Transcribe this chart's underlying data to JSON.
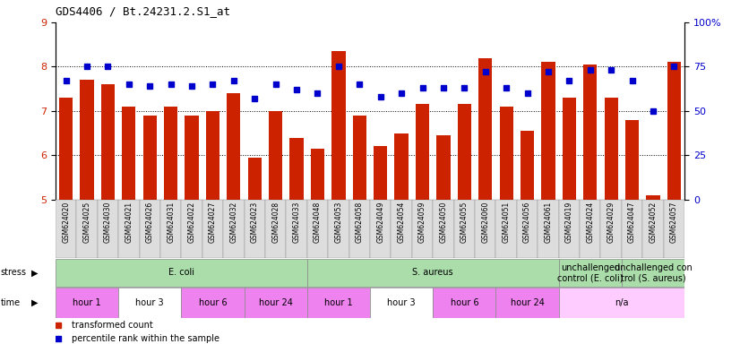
{
  "title": "GDS4406 / Bt.24231.2.S1_at",
  "categories": [
    "GSM624020",
    "GSM624025",
    "GSM624030",
    "GSM624021",
    "GSM624026",
    "GSM624031",
    "GSM624022",
    "GSM624027",
    "GSM624032",
    "GSM624023",
    "GSM624028",
    "GSM624033",
    "GSM624048",
    "GSM624053",
    "GSM624058",
    "GSM624049",
    "GSM624054",
    "GSM624059",
    "GSM624050",
    "GSM624055",
    "GSM624060",
    "GSM624051",
    "GSM624056",
    "GSM624061",
    "GSM624019",
    "GSM624024",
    "GSM624029",
    "GSM624047",
    "GSM624052",
    "GSM624057"
  ],
  "bar_values": [
    7.3,
    7.7,
    7.6,
    7.1,
    6.9,
    7.1,
    6.9,
    7.0,
    7.4,
    5.95,
    7.0,
    6.4,
    6.15,
    8.35,
    6.9,
    6.2,
    6.5,
    7.15,
    6.45,
    7.15,
    8.2,
    7.1,
    6.55,
    8.1,
    7.3,
    8.05,
    7.3,
    6.8,
    5.1,
    8.1
  ],
  "dot_values": [
    67,
    75,
    75,
    65,
    64,
    65,
    64,
    65,
    67,
    57,
    65,
    62,
    60,
    75,
    65,
    58,
    60,
    63,
    63,
    63,
    72,
    63,
    60,
    72,
    67,
    73,
    73,
    67,
    50,
    75
  ],
  "bar_color": "#cc2200",
  "dot_color": "#0000cc",
  "ylim_left": [
    5,
    9
  ],
  "ylim_right": [
    0,
    100
  ],
  "yticks_left": [
    5,
    6,
    7,
    8,
    9
  ],
  "yticks_right": [
    0,
    25,
    50,
    75,
    100
  ],
  "grid_lines": [
    6,
    7,
    8
  ],
  "stress_groups": [
    {
      "label": "E. coli",
      "start": 0,
      "end": 12,
      "color": "#aaddaa"
    },
    {
      "label": "S. aureus",
      "start": 12,
      "end": 24,
      "color": "#aaddaa"
    },
    {
      "label": "unchallenged\ncontrol (E. coli)",
      "start": 24,
      "end": 27,
      "color": "#aaddaa"
    },
    {
      "label": "unchallenged con\ntrol (S. aureus)",
      "start": 27,
      "end": 30,
      "color": "#aaddaa"
    }
  ],
  "time_groups": [
    {
      "label": "hour 1",
      "start": 0,
      "end": 3,
      "color": "#ee82ee"
    },
    {
      "label": "hour 3",
      "start": 3,
      "end": 6,
      "color": "#ffffff"
    },
    {
      "label": "hour 6",
      "start": 6,
      "end": 9,
      "color": "#ee82ee"
    },
    {
      "label": "hour 24",
      "start": 9,
      "end": 12,
      "color": "#ee82ee"
    },
    {
      "label": "hour 1",
      "start": 12,
      "end": 15,
      "color": "#ee82ee"
    },
    {
      "label": "hour 3",
      "start": 15,
      "end": 18,
      "color": "#ffffff"
    },
    {
      "label": "hour 6",
      "start": 18,
      "end": 21,
      "color": "#ee82ee"
    },
    {
      "label": "hour 24",
      "start": 21,
      "end": 24,
      "color": "#ee82ee"
    },
    {
      "label": "n/a",
      "start": 24,
      "end": 30,
      "color": "#ffccff"
    }
  ],
  "legend_items": [
    {
      "label": "transformed count",
      "color": "#cc2200"
    },
    {
      "label": "percentile rank within the sample",
      "color": "#0000cc"
    }
  ]
}
